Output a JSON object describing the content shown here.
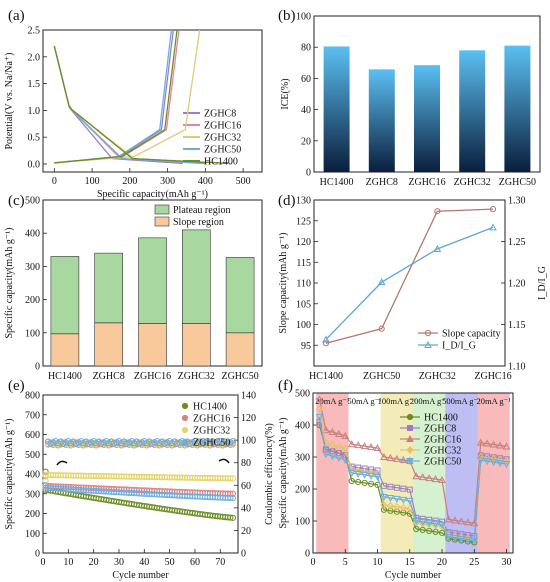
{
  "chart_data": [
    {
      "panel_label": "(a)",
      "type": "line",
      "xlabel": "Specific capacity(mAh g⁻¹)",
      "ylabel": "Potential(V vs. Na/Na⁺)",
      "xlim": [
        -30,
        550
      ],
      "ylim": [
        -0.15,
        2.5
      ],
      "xticks": [
        "0",
        "100",
        "200",
        "300",
        "400",
        "500"
      ],
      "yticks": [
        "0.0",
        "0.5",
        "1.0",
        "1.5",
        "2.0",
        "2.5"
      ],
      "legend_position": "right",
      "series": [
        {
          "name": "ZGHC8",
          "color": "#9a7fc8",
          "discharge_end": 340,
          "charge_end": 315
        },
        {
          "name": "ZGHC16",
          "color": "#d98aa0",
          "discharge_end": 390,
          "charge_end": 330
        },
        {
          "name": "ZGHC32",
          "color": "#e0c87a",
          "discharge_end": 470,
          "charge_end": 385
        },
        {
          "name": "ZGHC50",
          "color": "#6aaee0",
          "discharge_end": 400,
          "charge_end": 310
        },
        {
          "name": "HC1400",
          "color": "#6b8e23",
          "discharge_end": 460,
          "charge_end": 325
        }
      ]
    },
    {
      "panel_label": "(b)",
      "type": "bar",
      "xlabel": "",
      "ylabel": "ICE(%)",
      "ylim": [
        0,
        100
      ],
      "yticks": [
        "0",
        "20",
        "40",
        "60",
        "80",
        "100"
      ],
      "categories": [
        "HC1400",
        "ZGHC8",
        "ZGHC16",
        "ZGHC32",
        "ZGHC50"
      ],
      "values": [
        80.5,
        65.8,
        68.5,
        78.0,
        81.0
      ],
      "bar_color_top": "#5bc0f2",
      "bar_color_bottom": "#0a1e3c"
    },
    {
      "panel_label": "(c)",
      "type": "bar",
      "stacked": true,
      "xlabel": "",
      "ylabel": "Specific capacity(mAh g⁻¹)",
      "ylim": [
        0,
        500
      ],
      "yticks": [
        "0",
        "100",
        "200",
        "300",
        "400",
        "500"
      ],
      "categories": [
        "HC1400",
        "ZGHC8",
        "ZGHC16",
        "ZGHC32",
        "ZGHC50"
      ],
      "legend_position": "top-right",
      "series": [
        {
          "name": "Slope region",
          "color": "#f7c99b",
          "values": [
            97,
            130,
            128,
            128,
            100
          ]
        },
        {
          "name": "Plateau region",
          "color": "#a8d8a0",
          "values": [
            233,
            210,
            258,
            282,
            227
          ]
        }
      ]
    },
    {
      "panel_label": "(d)",
      "type": "line",
      "xlabel": "",
      "ylabel": "Slope capacity(mAh g⁻¹)",
      "y2label": "I_D/I_G",
      "categories": [
        "HC1400",
        "ZGHC50",
        "ZGHC32",
        "ZGHC16"
      ],
      "ylim": [
        90,
        130
      ],
      "yticks": [
        "95",
        "100",
        "105",
        "110",
        "115",
        "120",
        "125",
        "130"
      ],
      "y2lim": [
        1.1,
        1.3
      ],
      "y2ticks": [
        "1.10",
        "1.15",
        "1.20",
        "1.25",
        "1.30"
      ],
      "legend_position": "bottom-right",
      "series": [
        {
          "name": "Slope capacity",
          "axis": "left",
          "color": "#b5776a",
          "marker": "circle",
          "values": [
            95.5,
            99.0,
            127.3,
            127.8
          ]
        },
        {
          "name": "I_D/I_G",
          "axis": "right",
          "color": "#5ba7d6",
          "marker": "triangle",
          "values": [
            1.132,
            1.201,
            1.241,
            1.267
          ]
        }
      ]
    },
    {
      "panel_label": "(e)",
      "type": "scatter",
      "xlabel": "Cycle number",
      "ylabel": "Specific capacity(mAh g⁻¹)",
      "y2label": "Coulombic efficiency(%)",
      "xlim": [
        0,
        77
      ],
      "xticks": [
        "0",
        "10",
        "20",
        "30",
        "40",
        "50",
        "60",
        "70"
      ],
      "ylim": [
        0,
        800
      ],
      "yticks": [
        "0",
        "100",
        "200",
        "300",
        "400",
        "500",
        "600",
        "700",
        "800"
      ],
      "y2lim": [
        0,
        140
      ],
      "y2ticks": [
        "0",
        "20",
        "40",
        "60",
        "80",
        "100",
        "120",
        "140"
      ],
      "legend_position": "top-right",
      "series": [
        {
          "name": "HC1400",
          "color": "#6b8e23",
          "start": 320,
          "end": 178,
          "ce": 97.5
        },
        {
          "name": "ZGHC16",
          "color": "#e07f7f",
          "start": 340,
          "end": 300,
          "ce": 96.5
        },
        {
          "name": "ZGHC32",
          "color": "#e6d36a",
          "start": 395,
          "end": 378,
          "ce": 97.0
        },
        {
          "name": "ZGHC50",
          "color": "#6aaee0",
          "start": 330,
          "end": 278,
          "ce": 98.0
        }
      ]
    },
    {
      "panel_label": "(f)",
      "type": "line",
      "xlabel": "Cycle number",
      "ylabel": "Specific capacity(mAh g⁻¹)",
      "xlim": [
        0,
        31
      ],
      "xticks": [
        "0",
        "5",
        "10",
        "15",
        "20",
        "25",
        "30"
      ],
      "ylim": [
        0,
        500
      ],
      "yticks": [
        "0",
        "100",
        "200",
        "300",
        "400",
        "500"
      ],
      "legend_position": "center",
      "rate_regions": [
        {
          "label": "20mA g⁻¹",
          "from": 0.5,
          "to": 5.5,
          "color": "#f5a3a3"
        },
        {
          "label": "50mA g⁻¹",
          "from": 5.5,
          "to": 10.5,
          "color": "#ffffff"
        },
        {
          "label": "100mA g⁻¹",
          "from": 10.5,
          "to": 15.5,
          "color": "#f0e6a0"
        },
        {
          "label": "200mA g⁻¹",
          "from": 15.5,
          "to": 20.5,
          "color": "#c8ecc0"
        },
        {
          "label": "500mA g⁻¹",
          "from": 20.5,
          "to": 25.5,
          "color": "#a8a8f0"
        },
        {
          "label": "20mA g⁻¹",
          "from": 25.5,
          "to": 30.5,
          "color": "#f5a3a3"
        }
      ],
      "series": [
        {
          "name": "HC1400",
          "color": "#6b8e23",
          "marker": "circle",
          "levels": [
            330,
            225,
            135,
            75,
            45,
            300
          ]
        },
        {
          "name": "ZGHC8",
          "color": "#9a7fc8",
          "marker": "square",
          "levels": [
            330,
            270,
            210,
            110,
            65,
            305
          ]
        },
        {
          "name": "ZGHC16",
          "color": "#c97f7f",
          "marker": "triangle",
          "levels": [
            390,
            340,
            300,
            240,
            105,
            345
          ]
        },
        {
          "name": "ZGHC32",
          "color": "#e6c36a",
          "marker": "diamond",
          "levels": [
            350,
            260,
            150,
            95,
            55,
            300
          ]
        },
        {
          "name": "ZGHC50",
          "color": "#6aaee0",
          "marker": "triangle-down",
          "levels": [
            315,
            250,
            175,
            100,
            50,
            290
          ]
        }
      ]
    }
  ]
}
